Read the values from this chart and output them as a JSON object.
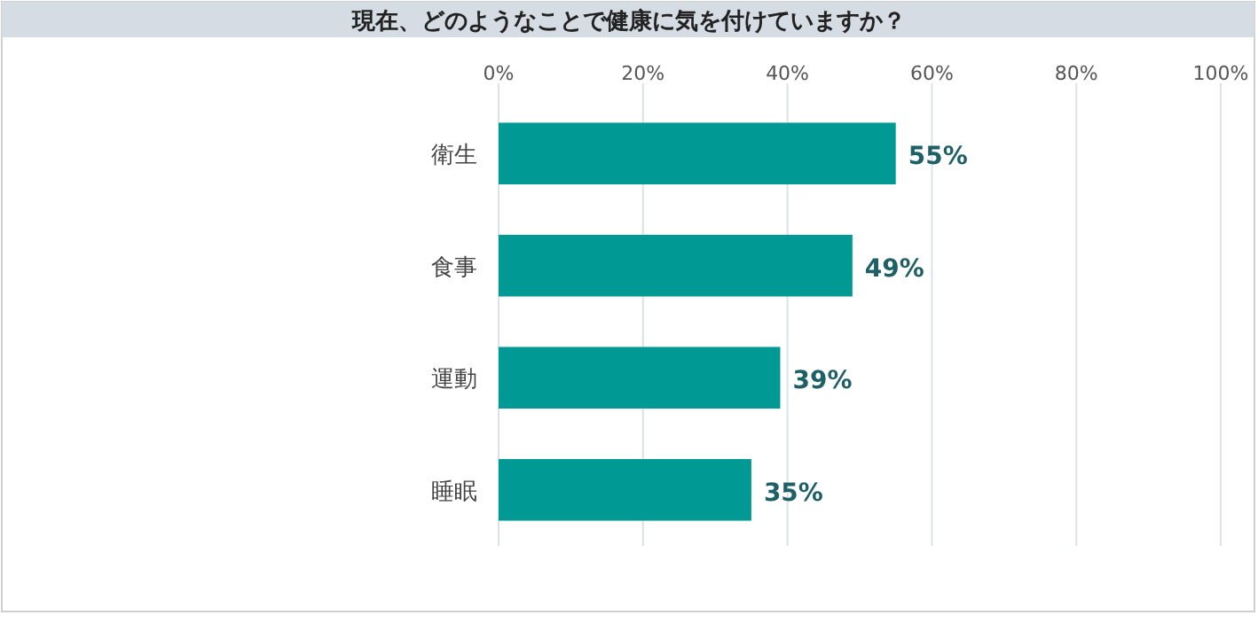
{
  "chart_data": {
    "type": "bar",
    "orientation": "horizontal",
    "title": "現在、どのようなことで健康に気を付けていますか？",
    "categories": [
      "衛生",
      "食事",
      "運動",
      "睡眠"
    ],
    "values": [
      55,
      49,
      39,
      35
    ],
    "value_labels": [
      "55%",
      "49%",
      "39%",
      "35%"
    ],
    "color": "#009994",
    "xlim": [
      0,
      100
    ],
    "xticks": [
      {
        "value": 0,
        "label": "0%"
      },
      {
        "value": 20,
        "label": "20%"
      },
      {
        "value": 40,
        "label": "40%"
      },
      {
        "value": 60,
        "label": "60%"
      },
      {
        "value": 80,
        "label": "80%"
      },
      {
        "value": 100,
        "label": "100%"
      }
    ],
    "grid": "x"
  }
}
